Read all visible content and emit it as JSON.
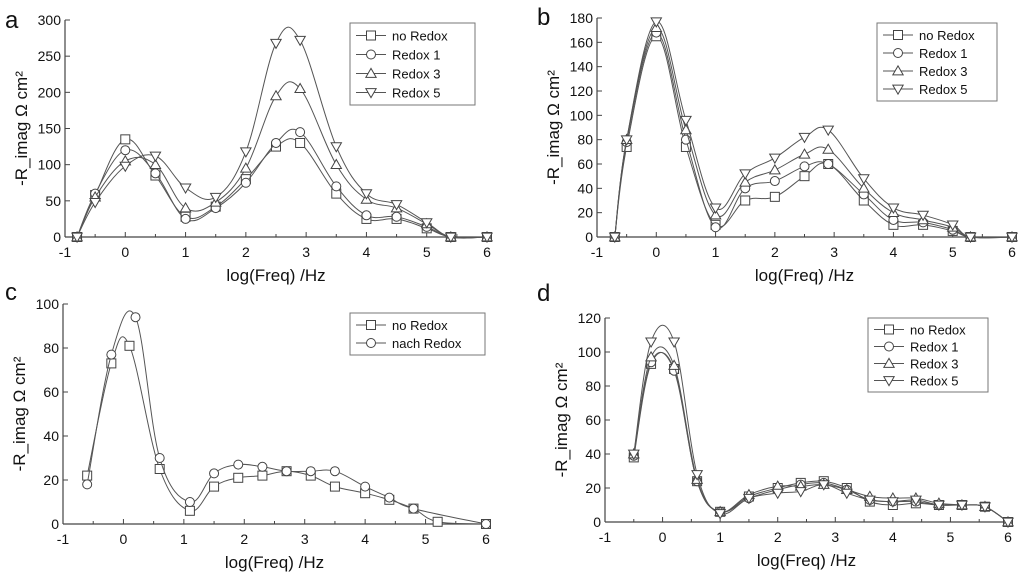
{
  "chart_data": [
    {
      "type": "line",
      "panel": "a",
      "xlabel": "log(Freq) /Hz",
      "ylabel": "-R_imag Ω cm²",
      "xlim": [
        -1,
        6
      ],
      "ylim": [
        0,
        300
      ],
      "xticks": [
        -1,
        0,
        1,
        2,
        3,
        4,
        5,
        6
      ],
      "yticks": [
        0,
        50,
        100,
        150,
        200,
        250,
        300
      ],
      "legend": "top-right",
      "series": [
        {
          "name": "no Redox",
          "marker": "square",
          "x": [
            -0.8,
            -0.5,
            0,
            0.5,
            1,
            1.5,
            2,
            2.5,
            2.9,
            3.5,
            4,
            4.5,
            5,
            5.4,
            6
          ],
          "y": [
            0,
            58,
            135,
            85,
            28,
            42,
            80,
            125,
            130,
            60,
            25,
            25,
            12,
            0,
            0
          ]
        },
        {
          "name": "Redox 1",
          "marker": "circle",
          "x": [
            -0.8,
            -0.5,
            0,
            0.5,
            1,
            1.5,
            2,
            2.5,
            2.9,
            3.5,
            4,
            4.5,
            5,
            5.4,
            6
          ],
          "y": [
            0,
            60,
            120,
            88,
            25,
            40,
            75,
            130,
            145,
            70,
            30,
            28,
            14,
            0,
            0
          ]
        },
        {
          "name": "Redox 3",
          "marker": "triangle-up",
          "x": [
            -0.8,
            -0.5,
            0,
            0.5,
            1,
            1.5,
            2,
            2.5,
            2.9,
            3.5,
            4,
            4.5,
            5,
            5.4,
            6
          ],
          "y": [
            0,
            55,
            105,
            100,
            40,
            48,
            95,
            195,
            205,
            100,
            52,
            40,
            18,
            0,
            0
          ]
        },
        {
          "name": "Redox 5",
          "marker": "triangle-down",
          "x": [
            -0.8,
            -0.5,
            0,
            0.5,
            1,
            1.5,
            2,
            2.5,
            2.9,
            3.5,
            4,
            4.5,
            5,
            5.4,
            6
          ],
          "y": [
            0,
            48,
            98,
            112,
            68,
            55,
            118,
            268,
            272,
            125,
            60,
            45,
            20,
            0,
            0
          ]
        }
      ]
    },
    {
      "type": "line",
      "panel": "b",
      "xlabel": "log(Freq) /Hz",
      "ylabel": "-R_imag Ω cm²",
      "xlim": [
        -1,
        6
      ],
      "ylim": [
        0,
        180
      ],
      "xticks": [
        -1,
        0,
        1,
        2,
        3,
        4,
        5,
        6
      ],
      "yticks": [
        0,
        20,
        40,
        60,
        80,
        100,
        120,
        140,
        160,
        180
      ],
      "legend": "top-right",
      "series": [
        {
          "name": "no  Redox",
          "marker": "square",
          "x": [
            -0.7,
            -0.5,
            0,
            0.5,
            1,
            1.5,
            2,
            2.5,
            2.9,
            3.5,
            4,
            4.5,
            5,
            5.3,
            6
          ],
          "y": [
            0,
            74,
            165,
            74,
            10,
            30,
            33,
            50,
            60,
            30,
            10,
            10,
            5,
            0,
            0
          ]
        },
        {
          "name": "Redox 1",
          "marker": "circle",
          "x": [
            -0.7,
            -0.5,
            0,
            0.5,
            1,
            1.5,
            2,
            2.5,
            2.9,
            3.5,
            4,
            4.5,
            5,
            5.3,
            6
          ],
          "y": [
            0,
            78,
            168,
            80,
            8,
            40,
            46,
            58,
            60,
            35,
            14,
            12,
            6,
            0,
            0
          ]
        },
        {
          "name": "Redox 3",
          "marker": "triangle-up",
          "x": [
            -0.7,
            -0.5,
            0,
            0.5,
            1,
            1.5,
            2,
            2.5,
            2.9,
            3.5,
            4,
            4.5,
            5,
            5.3,
            6
          ],
          "y": [
            0,
            80,
            172,
            88,
            18,
            45,
            55,
            68,
            72,
            40,
            20,
            14,
            8,
            0,
            0
          ]
        },
        {
          "name": "Redox 5",
          "marker": "triangle-down",
          "x": [
            -0.7,
            -0.5,
            0,
            0.5,
            1,
            1.5,
            2,
            2.5,
            2.9,
            3.5,
            4,
            4.5,
            5,
            5.3,
            6
          ],
          "y": [
            0,
            80,
            177,
            96,
            24,
            52,
            65,
            82,
            88,
            48,
            24,
            18,
            10,
            0,
            0
          ]
        }
      ]
    },
    {
      "type": "line",
      "panel": "c",
      "xlabel": "log(Freq) /Hz",
      "ylabel": "-R_imag Ω cm²",
      "xlim": [
        -1,
        6
      ],
      "ylim": [
        0,
        100
      ],
      "xticks": [
        -1,
        0,
        1,
        2,
        3,
        4,
        5,
        6
      ],
      "yticks": [
        0,
        20,
        40,
        60,
        80,
        100
      ],
      "legend": "top-right",
      "series": [
        {
          "name": "no Redox",
          "marker": "square",
          "x": [
            -0.6,
            -0.2,
            0.1,
            0.6,
            1.1,
            1.5,
            1.9,
            2.3,
            2.7,
            3.1,
            3.5,
            4,
            4.4,
            4.8,
            5.2,
            6
          ],
          "y": [
            22,
            73,
            81,
            25,
            6,
            17,
            21,
            22,
            24,
            22,
            17,
            14,
            11,
            7,
            1,
            0
          ]
        },
        {
          "name": "nach Redox",
          "marker": "circle",
          "x": [
            -0.6,
            -0.2,
            0.2,
            0.6,
            1.1,
            1.5,
            1.9,
            2.3,
            2.7,
            3.1,
            3.5,
            4,
            4.4,
            4.8,
            6
          ],
          "y": [
            18,
            77,
            94,
            30,
            10,
            23,
            27,
            26,
            24,
            24,
            24,
            17,
            12,
            7,
            0
          ]
        }
      ]
    },
    {
      "type": "line",
      "panel": "d",
      "xlabel": "log(Freq) /Hz",
      "ylabel": "-R_imag Ω cm²",
      "xlim": [
        -1,
        6
      ],
      "ylim": [
        0,
        120
      ],
      "xticks": [
        -1,
        0,
        1,
        2,
        3,
        4,
        5,
        6
      ],
      "yticks": [
        0,
        20,
        40,
        60,
        80,
        100,
        120
      ],
      "legend": "top-right",
      "series": [
        {
          "name": "no Redox",
          "marker": "square",
          "x": [
            -0.5,
            -0.2,
            0.2,
            0.6,
            1,
            1.5,
            2,
            2.4,
            2.8,
            3.2,
            3.6,
            4,
            4.4,
            4.8,
            5.2,
            5.6,
            6
          ],
          "y": [
            38,
            93,
            90,
            24,
            6,
            15,
            20,
            23,
            24,
            20,
            12,
            10,
            11,
            10,
            10,
            9,
            0
          ]
        },
        {
          "name": "Redox 1",
          "marker": "circle",
          "x": [
            -0.5,
            -0.2,
            0.2,
            0.6,
            1,
            1.5,
            2,
            2.4,
            2.8,
            3.2,
            3.6,
            4,
            4.4,
            4.8,
            5.2,
            5.6,
            6
          ],
          "y": [
            39,
            94,
            89,
            24,
            6,
            14,
            19,
            22,
            23,
            19,
            13,
            12,
            12,
            10,
            10,
            9,
            0
          ]
        },
        {
          "name": "Redox 3",
          "marker": "triangle-up",
          "x": [
            -0.5,
            -0.2,
            0.2,
            0.6,
            1,
            1.5,
            2,
            2.4,
            2.8,
            3.2,
            3.6,
            4,
            4.4,
            4.8,
            5.2,
            5.6,
            6
          ],
          "y": [
            40,
            97,
            92,
            25,
            6,
            16,
            21,
            21,
            22,
            19,
            15,
            14,
            14,
            11,
            10,
            9,
            0
          ]
        },
        {
          "name": "Redox 5",
          "marker": "triangle-down",
          "x": [
            -0.5,
            -0.2,
            0.2,
            0.6,
            1,
            1.5,
            2,
            2.4,
            2.8,
            3.2,
            3.6,
            4,
            4.4,
            4.8,
            5.2,
            5.6,
            6
          ],
          "y": [
            40,
            106,
            106,
            28,
            5,
            14,
            17,
            18,
            22,
            17,
            13,
            12,
            13,
            10,
            10,
            9,
            0
          ]
        }
      ]
    }
  ]
}
